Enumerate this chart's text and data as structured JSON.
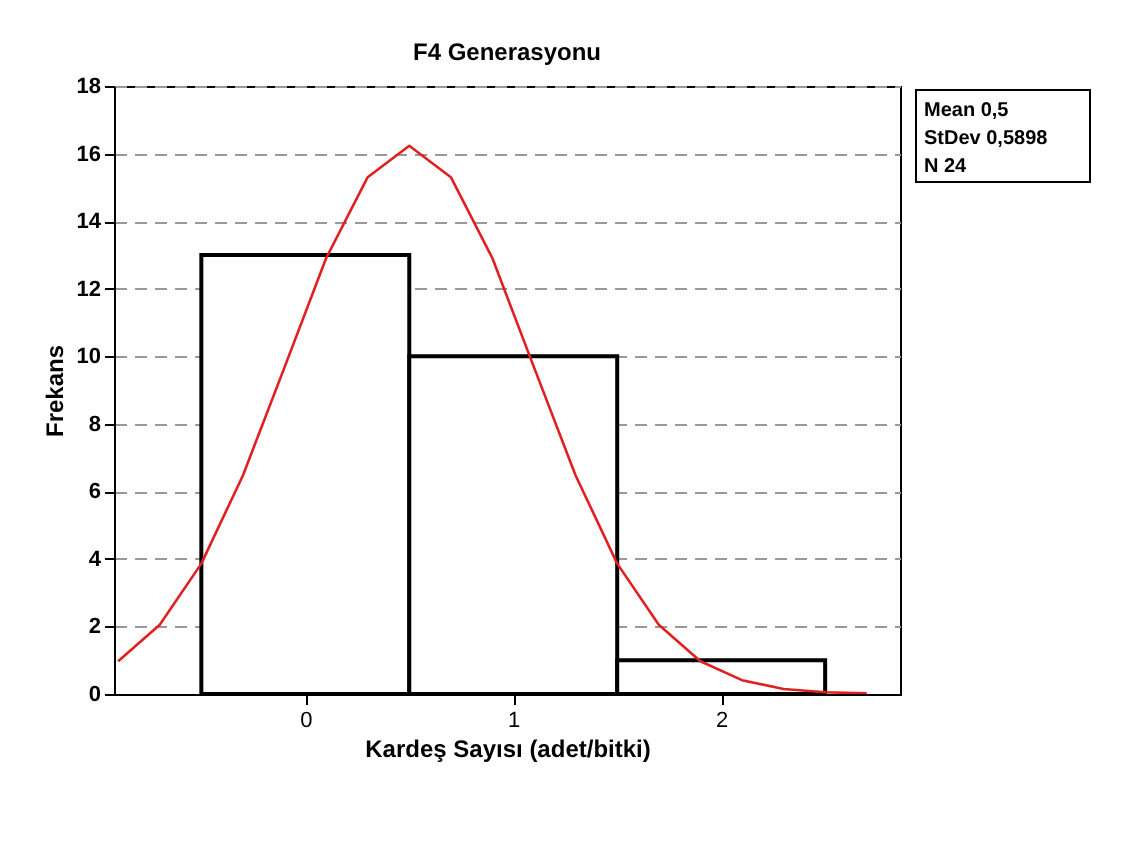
{
  "chart_data": {
    "type": "histogram",
    "title": "F4 Generasyonu",
    "xlabel": "Kardeş Sayısı (adet/bitki)",
    "ylabel": "Frekans",
    "bins": [
      -0.5,
      0.5,
      1.5,
      2.5
    ],
    "values": [
      13,
      10,
      1
    ],
    "color": "#ffffff",
    "series": [
      {
        "type": "line",
        "color": "#e02020",
        "x": [
          -0.9,
          -0.7,
          -0.5,
          -0.3,
          -0.1,
          0.1,
          0.3,
          0.5,
          0.7,
          0.9,
          1.1,
          1.3,
          1.5,
          1.7,
          1.9,
          2.1,
          2.3,
          2.5,
          2.7
        ],
        "values": [
          0.97,
          2.05,
          3.86,
          6.47,
          9.67,
          12.9,
          15.3,
          16.23,
          15.3,
          12.9,
          9.67,
          6.47,
          3.86,
          2.05,
          0.97,
          0.41,
          0.15,
          0.05,
          0.02
        ]
      }
    ],
    "xlim": [
      -0.92,
      2.86
    ],
    "xticks": [
      0,
      1,
      2
    ],
    "ylim": [
      0,
      18
    ],
    "yticks": [
      0,
      2,
      4,
      6,
      8,
      10,
      12,
      14,
      16,
      18
    ],
    "grid": "y",
    "legend": false,
    "annotations": [
      "Mean 0,5",
      "StDev 0,5898",
      "N 24"
    ]
  }
}
